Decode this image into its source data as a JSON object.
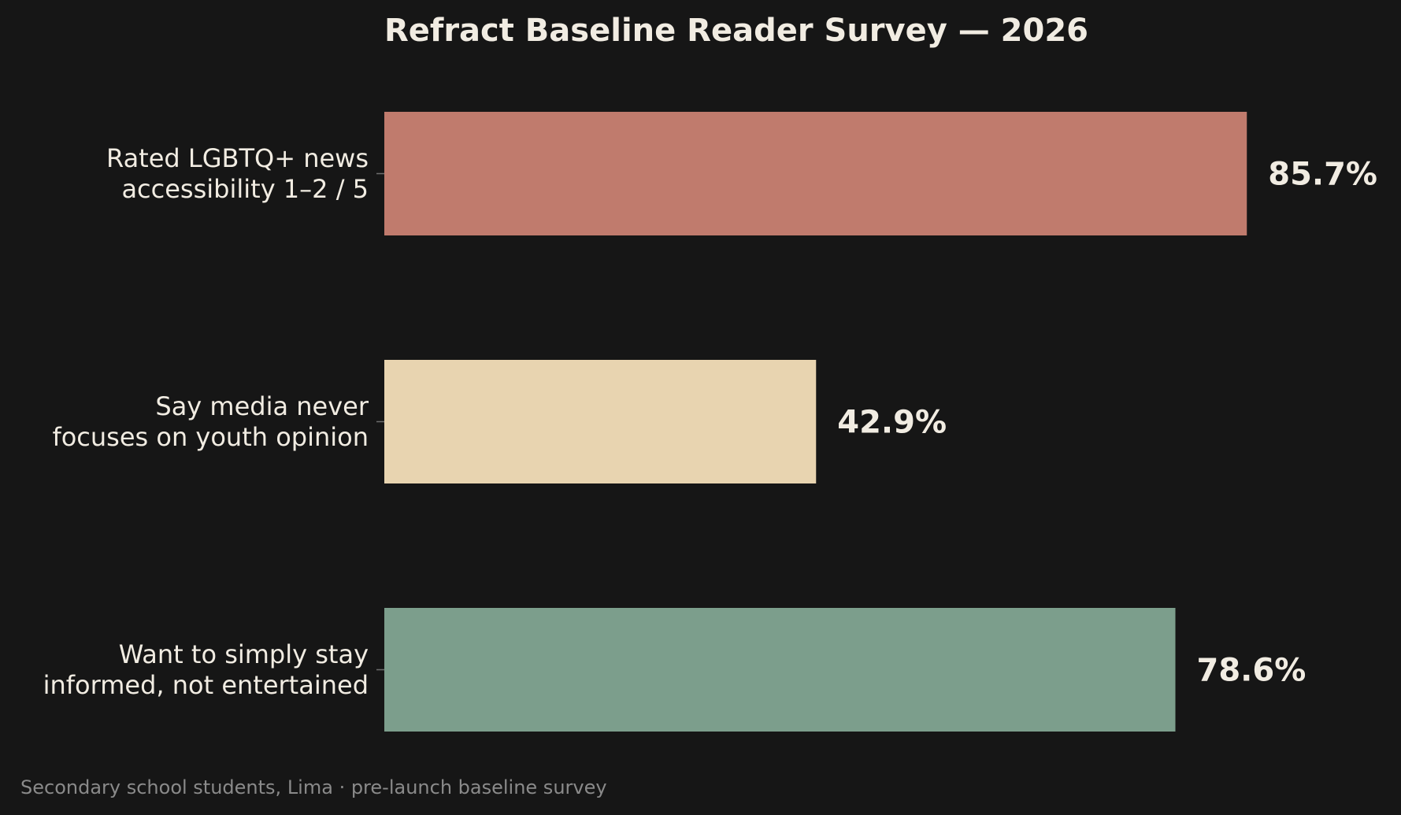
{
  "chart_data": {
    "type": "bar",
    "orientation": "horizontal",
    "title": "Refract Baseline Reader Survey — 2026",
    "categories": [
      [
        "Rated LGBTQ+ news",
        "accessibility 1–2 / 5"
      ],
      [
        "Say media never",
        "focuses on youth opinion"
      ],
      [
        "Want to simply stay",
        "informed, not entertained"
      ]
    ],
    "values": [
      85.7,
      42.9,
      78.6
    ],
    "value_labels": [
      "85.7%",
      "42.9%",
      "78.6%"
    ],
    "colors": [
      "#c07b6d",
      "#e8d4b0",
      "#7c9e8c"
    ],
    "xlim": [
      0,
      100
    ],
    "xlabel": "",
    "ylabel": "",
    "grid": false,
    "legend": "none",
    "footnote": "Secondary school students, Lima · pre-launch baseline survey"
  }
}
